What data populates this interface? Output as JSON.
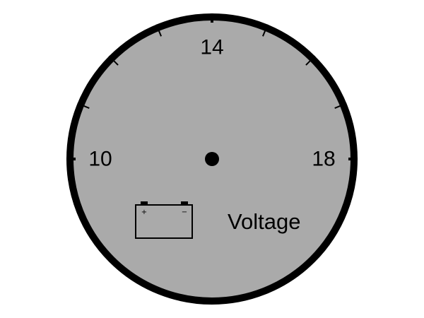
{
  "gauge": {
    "caption": "Voltage",
    "icon": "battery-icon",
    "battery_plus": "+",
    "battery_minus": "−",
    "scale": {
      "min": 10,
      "max": 18,
      "major_step": 4,
      "minor_step": 1,
      "sweep_degrees": 180,
      "labels": [
        "10",
        "14",
        "18"
      ]
    },
    "colors": {
      "face": "#aaaaaa",
      "rim": "#000000",
      "ticks": "#000000",
      "text": "#000000",
      "pivot": "#000000"
    }
  }
}
